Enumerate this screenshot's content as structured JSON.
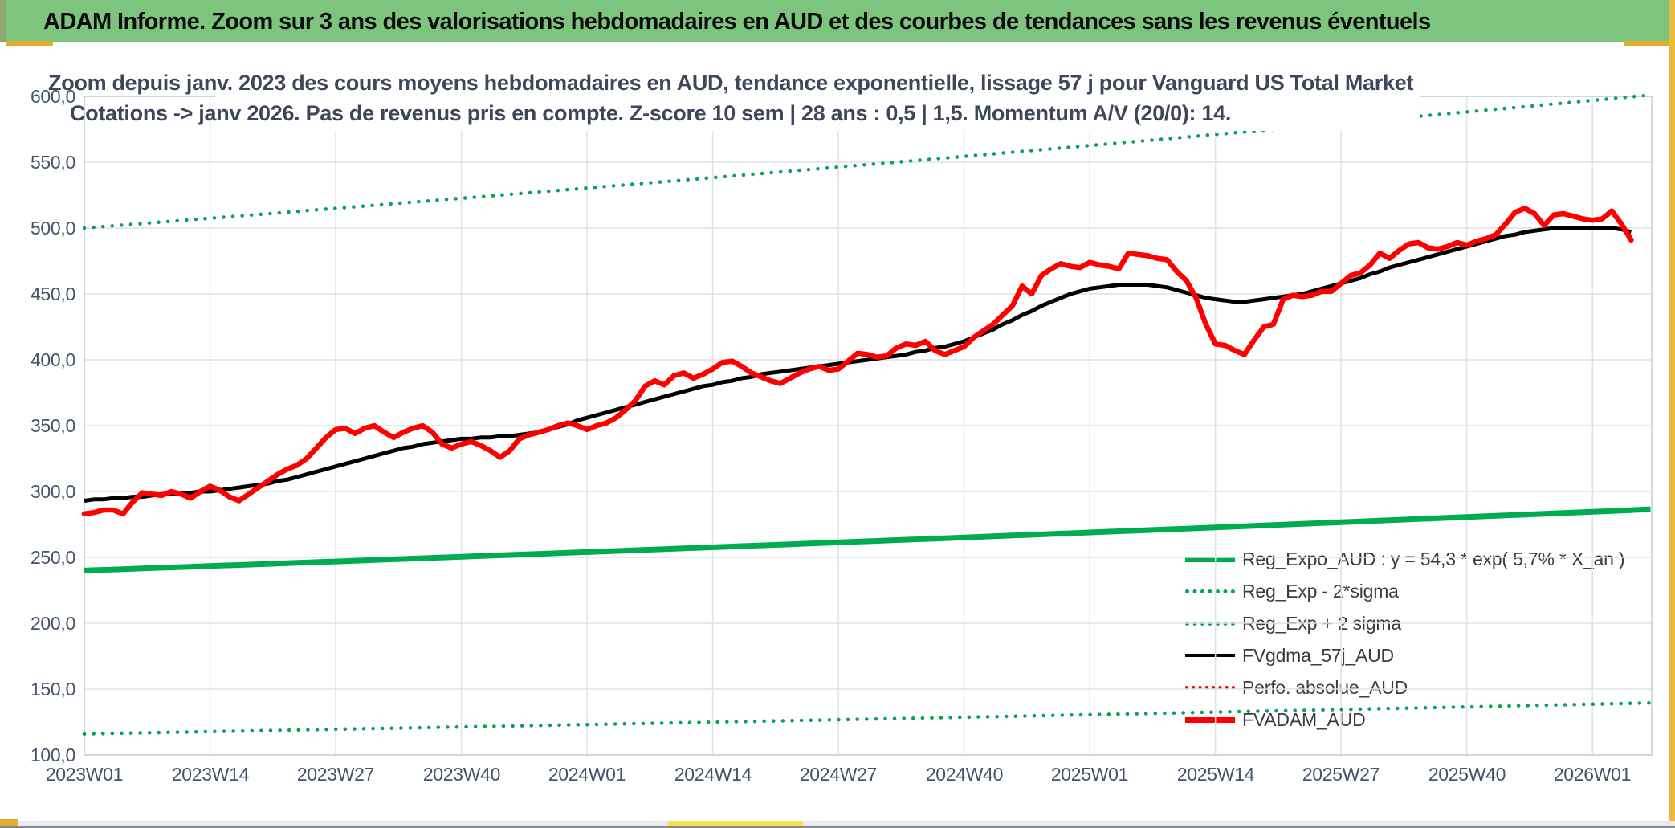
{
  "header": {
    "title": "ADAM Informe. Zoom sur 3 ans des valorisations hebdomadaires en AUD et des courbes de tendances sans les revenus éventuels"
  },
  "chart": {
    "title_line1": "Zoom depuis janv. 2023 des cours moyens hebdomadaires en AUD, tendance exponentielle, lissage 57 j pour Vanguard US Total Market",
    "title_line2": "Cotations -> janv 2026. Pas de revenus pris en compte. Z-score 10 sem | 28 ans : 0,5 | 1,5. Momentum A/V (20/0): 14.",
    "y_ticks": [
      "600,0",
      "550,0",
      "500,0",
      "450,0",
      "400,0",
      "350,0",
      "300,0",
      "250,0",
      "200,0",
      "150,0",
      "100,0"
    ],
    "x_ticks": [
      "2023W01",
      "2023W14",
      "2023W27",
      "2023W40",
      "2024W01",
      "2024W14",
      "2024W27",
      "2024W40",
      "2025W01",
      "2025W14",
      "2025W27",
      "2025W40",
      "2026W01"
    ],
    "legend": [
      {
        "label": "Reg_Expo_AUD : y = 54,3 * exp( 5,7% *  X_an )",
        "swatch": "green-thick-solid"
      },
      {
        "label": "Reg_Exp - 2*sigma",
        "swatch": "green-dotted"
      },
      {
        "label": "Reg_Exp + 2 sigma",
        "swatch": "green-dotted"
      },
      {
        "label": "FVgdma_57j_AUD",
        "swatch": "black-solid"
      },
      {
        "label": "Perfo. absolue_AUD",
        "swatch": "red-dotted"
      },
      {
        "label": "FVADAM_AUD",
        "swatch": "red-thick-solid"
      }
    ],
    "colors": {
      "green": "#00ac50",
      "red": "#fe0000",
      "black": "#000000",
      "gridline": "#dfe2e7",
      "plot_border": "#c9cdd4",
      "axis_text": "#44546a",
      "header_green": "#7dc57f",
      "gold": "#e9ba3d"
    }
  },
  "chart_data": {
    "type": "line",
    "x_start": "2023W01",
    "x_end": "2026W05",
    "x_interval": "weekly",
    "x_tick_step_weeks": 13,
    "ylim": [
      100,
      600
    ],
    "grid": true,
    "legend_position": "inside bottom-right",
    "series": [
      {
        "name": "FVADAM_AUD",
        "color": "#fe0000",
        "style": "solid-thick",
        "values": [
          283,
          284,
          286,
          286,
          283,
          292,
          299,
          298,
          297,
          300,
          298,
          295,
          300,
          304,
          301,
          296,
          293,
          298,
          303,
          308,
          313,
          317,
          320,
          325,
          333,
          341,
          347,
          348,
          344,
          348,
          350,
          345,
          341,
          345,
          348,
          350,
          345,
          336,
          333,
          336,
          338,
          335,
          331,
          326,
          331,
          340,
          343,
          345,
          347,
          350,
          352,
          350,
          347,
          350,
          352,
          356,
          362,
          369,
          380,
          384,
          381,
          388,
          390,
          386,
          389,
          393,
          398,
          399,
          395,
          390,
          387,
          384,
          382,
          386,
          390,
          393,
          395,
          392,
          393,
          399,
          405,
          404,
          402,
          403,
          409,
          412,
          411,
          414,
          407,
          404,
          407,
          410,
          417,
          422,
          427,
          434,
          441,
          456,
          450,
          464,
          469,
          473,
          471,
          470,
          474,
          472,
          471,
          469,
          481,
          480,
          479,
          477,
          476,
          467,
          460,
          447,
          427,
          412,
          411,
          407,
          404,
          415,
          425,
          427,
          446,
          449,
          448,
          449,
          452,
          452,
          458,
          464,
          466,
          472,
          481,
          477,
          483,
          488,
          489,
          485,
          484,
          486,
          489,
          487,
          490,
          492,
          495,
          503,
          512,
          515,
          511,
          502,
          510,
          511,
          509,
          507,
          506,
          507,
          513,
          503,
          491
        ]
      },
      {
        "name": "FVgdma_57j_AUD",
        "color": "#000000",
        "style": "solid",
        "values": [
          293,
          294,
          294,
          295,
          295,
          296,
          296,
          297,
          298,
          298,
          299,
          299,
          300,
          300,
          301,
          302,
          303,
          304,
          305,
          306,
          308,
          309,
          311,
          313,
          315,
          317,
          319,
          321,
          323,
          325,
          327,
          329,
          331,
          333,
          334,
          336,
          337,
          338,
          339,
          340,
          340,
          341,
          341,
          342,
          342,
          343,
          344,
          345,
          347,
          349,
          351,
          354,
          356,
          358,
          360,
          362,
          364,
          366,
          368,
          370,
          372,
          374,
          376,
          378,
          380,
          381,
          383,
          384,
          386,
          387,
          389,
          390,
          391,
          392,
          393,
          394,
          395,
          396,
          397,
          398,
          399,
          400,
          401,
          402,
          403,
          404,
          406,
          407,
          409,
          410,
          412,
          414,
          417,
          420,
          423,
          427,
          430,
          434,
          437,
          441,
          444,
          447,
          450,
          452,
          454,
          455,
          456,
          457,
          457,
          457,
          457,
          456,
          455,
          453,
          451,
          449,
          447,
          446,
          445,
          444,
          444,
          445,
          446,
          447,
          448,
          449,
          450,
          452,
          454,
          456,
          458,
          460,
          462,
          465,
          467,
          470,
          472,
          474,
          476,
          478,
          480,
          482,
          484,
          486,
          488,
          490,
          492,
          494,
          495,
          497,
          498,
          499,
          500,
          500,
          500,
          500,
          500,
          500,
          500,
          499,
          497
        ]
      },
      {
        "name": "Perfo. absolue_AUD",
        "color": "#fe0000",
        "style": "dotted",
        "values_ref": "FVADAM_AUD",
        "note": "coincides with FVADAM_AUD (no revenues taken into account), hidden beneath the solid red line"
      },
      {
        "name": "Reg_Expo_AUD",
        "color": "#00ac50",
        "style": "solid-thick",
        "model": "exponential",
        "formula": "y = 54,3 * exp( 5,7% * X_an )",
        "start_value": 240,
        "end_value": 286.5,
        "end_week": 162
      },
      {
        "name": "Reg_Exp - 2*sigma",
        "color": "#0aa253",
        "style": "dotted",
        "model": "exponential",
        "start_value": 116,
        "end_value": 139.5,
        "end_week": 162
      },
      {
        "name": "Reg_Exp + 2 sigma",
        "color": "#0aa253",
        "style": "dotted",
        "model": "exponential",
        "start_value": 500,
        "end_value": 601,
        "end_week": 162
      }
    ]
  }
}
